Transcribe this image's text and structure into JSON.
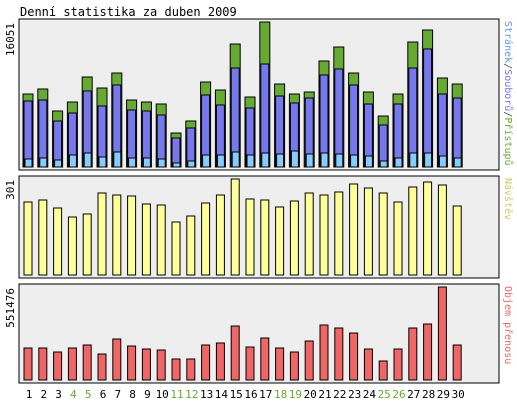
{
  "chart_data": {
    "type": "bar",
    "title": "Denní statistika za duben 2009",
    "categories": [
      "1",
      "2",
      "3",
      "4",
      "5",
      "6",
      "7",
      "8",
      "9",
      "10",
      "11",
      "12",
      "13",
      "14",
      "15",
      "16",
      "17",
      "18",
      "19",
      "20",
      "21",
      "22",
      "23",
      "24",
      "25",
      "26",
      "27",
      "28",
      "29",
      "30"
    ],
    "weekend_days": [
      "4",
      "5",
      "11",
      "12",
      "18",
      "19",
      "25",
      "26"
    ],
    "colors": {
      "background": "#eeeeee",
      "hits": "#66aa33",
      "files": "#7777ee",
      "pages": "#88ccff",
      "visits": "#ffff99",
      "traffic": "#ee6666",
      "weekday_label": "#000000",
      "weekend_label": "#66aa33"
    },
    "panels": [
      {
        "name": "requests",
        "ymax_label": "16051",
        "ylim": [
          0,
          16051
        ],
        "axis_label_parts": [
          {
            "text": "Stránek",
            "color": "#5599ee"
          },
          {
            "text": "/",
            "color": "#444444"
          },
          {
            "text": "Souborů",
            "color": "#7777ee"
          },
          {
            "text": "/",
            "color": "#444444"
          },
          {
            "text": "Přístupů",
            "color": "#66aa33"
          }
        ],
        "series": [
          {
            "name": "Přístupů",
            "values": [
              8100,
              8600,
              6200,
              7200,
              10000,
              8700,
              10400,
              7400,
              7200,
              7000,
              3800,
              5100,
              9400,
              8500,
              13600,
              7800,
              16051,
              9200,
              8100,
              8300,
              11700,
              13300,
              10400,
              8300,
              5700,
              8100,
              13800,
              15200,
              9800,
              9200
            ]
          },
          {
            "name": "Souborů",
            "values": [
              7300,
              7400,
              5100,
              6000,
              8400,
              6800,
              9100,
              6300,
              6200,
              5800,
              3200,
              4300,
              8000,
              6900,
              11000,
              6500,
              11400,
              7900,
              7100,
              7600,
              10200,
              10800,
              9100,
              7000,
              4600,
              7000,
              11000,
              13100,
              8100,
              7600
            ]
          },
          {
            "name": "Stránek",
            "values": [
              900,
              1000,
              800,
              1300,
              1500,
              1100,
              1700,
              1000,
              1000,
              900,
              400,
              700,
              1300,
              1300,
              1700,
              1300,
              1500,
              1400,
              1800,
              1400,
              1500,
              1400,
              1300,
              1200,
              700,
              1000,
              1500,
              1500,
              1200,
              1000
            ]
          }
        ]
      },
      {
        "name": "visits",
        "ymax_label": "301",
        "ylim": [
          0,
          301
        ],
        "axis_label_parts": [
          {
            "text": "Návštěv",
            "color": "#cccc66"
          }
        ],
        "series": [
          {
            "name": "Návštěv",
            "values": [
              229,
              235,
              209,
              182,
              192,
              256,
              251,
              248,
              222,
              220,
              166,
              184,
              226,
              250,
              301,
              237,
              236,
              214,
              232,
              258,
              252,
              259,
              286,
              273,
              256,
              228,
              277,
              291,
              281,
              217
            ]
          }
        ]
      },
      {
        "name": "traffic",
        "ymax_label": "551476",
        "ylim": [
          0,
          551476
        ],
        "axis_label_parts": [
          {
            "text": "Objem přenosu",
            "color": "#ee6666"
          }
        ],
        "series": [
          {
            "name": "Objem přenosu",
            "values": [
              190000,
              190000,
              165000,
              188000,
              205000,
              157000,
              243000,
              200000,
              183000,
              180000,
              123000,
              122000,
              205000,
              220000,
              323000,
              195000,
              248000,
              188000,
              165000,
              230000,
              327000,
              310000,
              278000,
              183000,
              115000,
              183000,
              309000,
              330000,
              551476,
              206000
            ]
          }
        ]
      }
    ]
  }
}
